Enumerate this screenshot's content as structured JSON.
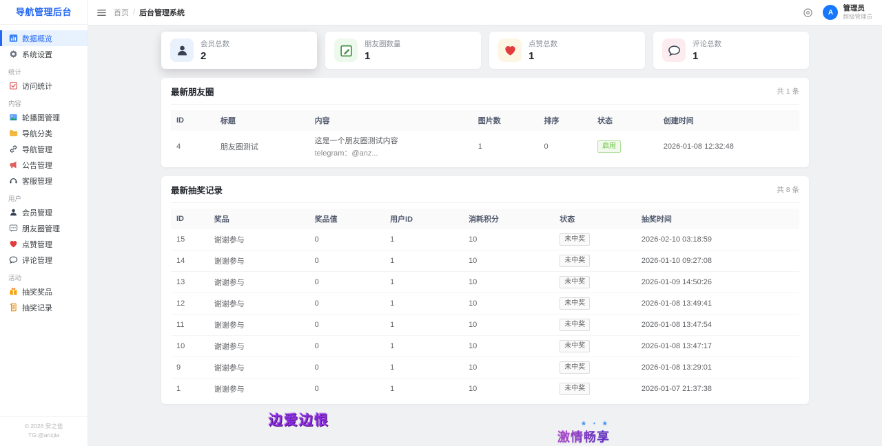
{
  "colors": {
    "accent": "#2468f2",
    "avatar": "#1677ff",
    "success": "#67c23a",
    "watermark_purple": "#8a2be2"
  },
  "sidebar": {
    "title": "导航管理后台",
    "sections": [
      {
        "label": "",
        "items": [
          {
            "icon": "bar-chart-icon",
            "label": "数据概览",
            "active": true
          },
          {
            "icon": "gear-icon",
            "label": "系统设置",
            "active": false
          }
        ]
      },
      {
        "label": "统计",
        "items": [
          {
            "icon": "clipboard-check-icon",
            "label": "访问统计",
            "active": false
          }
        ]
      },
      {
        "label": "内容",
        "items": [
          {
            "icon": "image-icon",
            "label": "轮播图管理",
            "active": false
          },
          {
            "icon": "folder-icon",
            "label": "导航分类",
            "active": false
          },
          {
            "icon": "link-icon",
            "label": "导航管理",
            "active": false
          },
          {
            "icon": "megaphone-icon",
            "label": "公告管理",
            "active": false
          },
          {
            "icon": "headset-icon",
            "label": "客服管理",
            "active": false
          }
        ]
      },
      {
        "label": "用户",
        "items": [
          {
            "icon": "user-icon",
            "label": "会员管理",
            "active": false
          },
          {
            "icon": "chat-square-icon",
            "label": "朋友圈管理",
            "active": false
          },
          {
            "icon": "heart-icon",
            "label": "点赞管理",
            "active": false
          },
          {
            "icon": "chat-round-icon",
            "label": "评论管理",
            "active": false
          }
        ]
      },
      {
        "label": "活动",
        "items": [
          {
            "icon": "gift-icon",
            "label": "抽奖奖品",
            "active": false
          },
          {
            "icon": "scroll-icon",
            "label": "抽奖记录",
            "active": false
          }
        ]
      }
    ],
    "footer_line1": "© 2026 安之佳",
    "footer_line2": "TG:@anzjia"
  },
  "topbar": {
    "breadcrumb": {
      "home": "首页",
      "separator": "/",
      "current": "后台管理系统"
    },
    "user": {
      "avatar_letter": "A",
      "name": "管理员",
      "role": "超级管理员"
    }
  },
  "stat_cards": [
    {
      "icon": "user-icon",
      "icon_bg": "#e9f1fd",
      "label": "会员总数",
      "value": "2",
      "elevated": true
    },
    {
      "icon": "note-edit-icon",
      "icon_bg": "#eef9ee",
      "label": "朋友圈数量",
      "value": "1",
      "elevated": false
    },
    {
      "icon": "heart-icon",
      "icon_bg": "#fdf6e3",
      "label": "点赞总数",
      "value": "1",
      "elevated": false
    },
    {
      "icon": "chat-round-icon",
      "icon_bg": "#fdecef",
      "label": "评论总数",
      "value": "1",
      "elevated": false
    }
  ],
  "moments_panel": {
    "title": "最新朋友圈",
    "count": "共 1 条",
    "columns": [
      "ID",
      "标题",
      "内容",
      "图片数",
      "排序",
      "状态",
      "创建时间"
    ],
    "rows": [
      {
        "id": "4",
        "title": "朋友圈测试",
        "content_line1": "这是一个朋友圈测试内容",
        "content_line2": "telegram：@anz...",
        "images": "1",
        "sort": "0",
        "status": "启用",
        "status_type": "success",
        "created": "2026-01-08 12:32:48"
      }
    ]
  },
  "lottery_panel": {
    "title": "最新抽奖记录",
    "count": "共 8 条",
    "columns": [
      "ID",
      "奖品",
      "奖品值",
      "用户ID",
      "消耗积分",
      "状态",
      "抽奖时间"
    ],
    "rows": [
      {
        "id": "15",
        "prize": "谢谢参与",
        "value": "0",
        "user_id": "1",
        "points": "10",
        "status": "未中奖",
        "status_type": "default",
        "time": "2026-02-10 03:18:59"
      },
      {
        "id": "14",
        "prize": "谢谢参与",
        "value": "0",
        "user_id": "1",
        "points": "10",
        "status": "未中奖",
        "status_type": "default",
        "time": "2026-01-10 09:27:08"
      },
      {
        "id": "13",
        "prize": "谢谢参与",
        "value": "0",
        "user_id": "1",
        "points": "10",
        "status": "未中奖",
        "status_type": "default",
        "time": "2026-01-09 14:50:26"
      },
      {
        "id": "12",
        "prize": "谢谢参与",
        "value": "0",
        "user_id": "1",
        "points": "10",
        "status": "未中奖",
        "status_type": "default",
        "time": "2026-01-08 13:49:41"
      },
      {
        "id": "11",
        "prize": "谢谢参与",
        "value": "0",
        "user_id": "1",
        "points": "10",
        "status": "未中奖",
        "status_type": "default",
        "time": "2026-01-08 13:47:54"
      },
      {
        "id": "10",
        "prize": "谢谢参与",
        "value": "0",
        "user_id": "1",
        "points": "10",
        "status": "未中奖",
        "status_type": "default",
        "time": "2026-01-08 13:47:17"
      },
      {
        "id": "9",
        "prize": "谢谢参与",
        "value": "0",
        "user_id": "1",
        "points": "10",
        "status": "未中奖",
        "status_type": "default",
        "time": "2026-01-08 13:29:01"
      },
      {
        "id": "1",
        "prize": "谢谢参与",
        "value": "0",
        "user_id": "1",
        "points": "10",
        "status": "未中奖",
        "status_type": "default",
        "time": "2026-01-07 21:37:38"
      }
    ]
  },
  "watermarks": {
    "left_text": "边爱边恨",
    "center_text": "激情畅享",
    "stars": "★ ⋆ ★"
  }
}
